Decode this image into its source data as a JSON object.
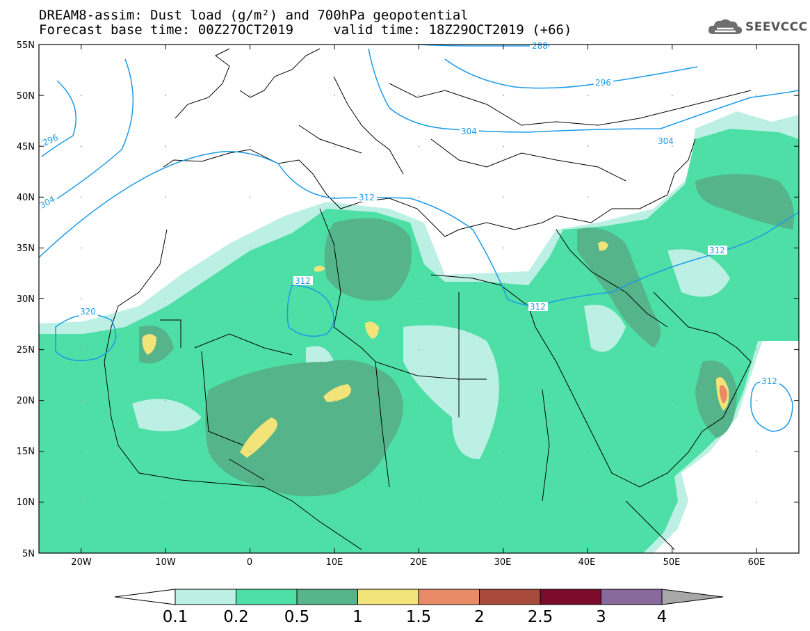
{
  "title": {
    "line1": "DREAM8-assim: Dust load (g/m²) and 700hPa geopotential",
    "line2": "Forecast base time: 00Z27OCT2019     valid time: 18Z29OCT2019 (+66)"
  },
  "logo": {
    "text": "SEEVCCC",
    "icon": "cloud-logo-icon"
  },
  "axes": {
    "lat_labels": [
      "55N",
      "50N",
      "45N",
      "40N",
      "35N",
      "30N",
      "25N",
      "20N",
      "15N",
      "10N",
      "5N"
    ],
    "lon_labels": [
      "20W",
      "10W",
      "0",
      "10E",
      "20E",
      "30E",
      "40E",
      "50E",
      "60E"
    ],
    "lat_range": [
      5,
      55
    ],
    "lon_range": [
      -25,
      65
    ]
  },
  "contour_labels": [
    "288",
    "296",
    "296",
    "304",
    "304",
    "304",
    "312",
    "312",
    "312",
    "312",
    "312",
    "320"
  ],
  "colorbar": {
    "ticks": [
      "0.1",
      "0.2",
      "0.5",
      "1",
      "1.5",
      "2",
      "2.5",
      "3",
      "4"
    ],
    "colors": [
      "#ffffff",
      "#bdf0e4",
      "#4ddfa6",
      "#55b48a",
      "#f3e47a",
      "#e98b66",
      "#a84a3c",
      "#7a0b2a",
      "#8a6a9c",
      "#a8a8a8"
    ]
  }
}
